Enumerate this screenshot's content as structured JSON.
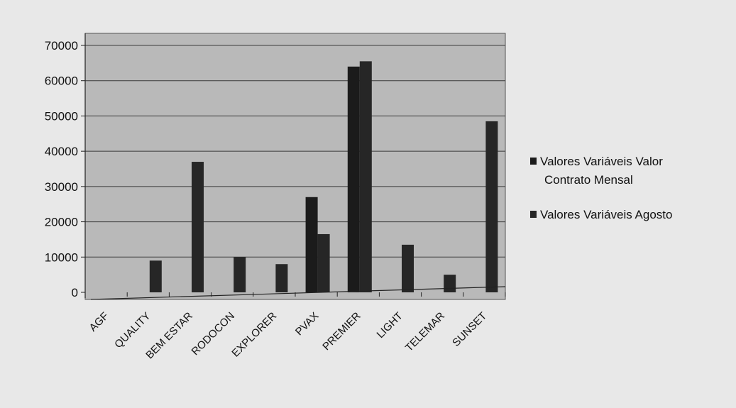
{
  "chart_data": {
    "type": "bar",
    "title": "",
    "xlabel": "",
    "ylabel": "",
    "ylim": [
      0,
      70000
    ],
    "yticks": [
      0,
      10000,
      20000,
      30000,
      40000,
      50000,
      60000,
      70000
    ],
    "grid": true,
    "legend_position": "right",
    "categories": [
      "AGF",
      "QUALITY",
      "BEM ESTAR",
      "RODOCON",
      "EXPLORER",
      "PVAX",
      "PREMIER",
      "LIGHT",
      "TELEMAR",
      "SUNSET"
    ],
    "series": [
      {
        "name": "Valores Variáveis Valor Contrato Mensal",
        "legend_lines": [
          "Valores Variáveis Valor",
          "Contrato Mensal"
        ],
        "color": "#1b1b1b",
        "values": [
          0,
          0,
          0,
          0,
          0,
          27000,
          64000,
          0,
          0,
          0
        ]
      },
      {
        "name": "Valores Variáveis Agosto",
        "legend_lines": [
          "Valores Variáveis Agosto"
        ],
        "color": "#262626",
        "values": [
          0,
          9000,
          37000,
          10000,
          8000,
          16500,
          65500,
          13500,
          5000,
          48500
        ]
      }
    ],
    "plot_background": "#b9b9b9",
    "frame_background": "#e8e8e8"
  }
}
